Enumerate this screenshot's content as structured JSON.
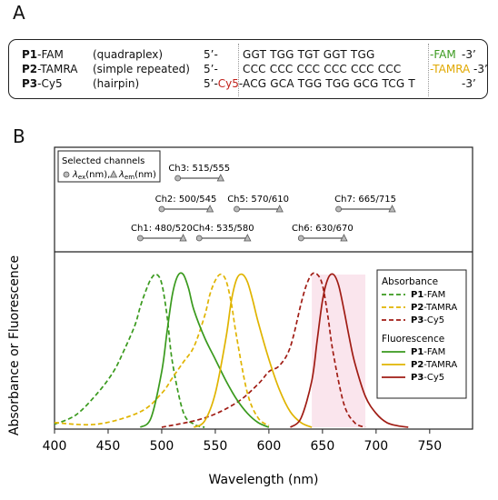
{
  "panel_a": {
    "letter": "A",
    "rows": [
      {
        "id": "P1",
        "suffix": "-FAM",
        "type": "(quadraplex)",
        "five": "5’-",
        "five_dye": "",
        "seq": "GGT TGG TGT GGT TGG",
        "three_dye": "-FAM",
        "three": "-3’",
        "dye_color": "#3a9a1e"
      },
      {
        "id": "P2",
        "suffix": "-TAMRA",
        "type": "(simple repeated)",
        "five": "5’-",
        "five_dye": "",
        "seq": "CCC CCC CCC CCC CCC CCC",
        "three_dye": "-TAMRA",
        "three": "-3’",
        "dye_color": "#e0a800"
      },
      {
        "id": "P3",
        "suffix": "-Cy5",
        "type": "(hairpin)",
        "five": "5’-",
        "five_dye": "Cy5",
        "seq": "ACG GCA TGG TGG GCG TCG T",
        "three_dye": "",
        "three": "-3’",
        "dye_color": "#c0201a"
      }
    ]
  },
  "panel_b": {
    "letter": "B",
    "legend_top": {
      "title": "Selected channels",
      "ex_label": "λ",
      "ex_sub": "ex",
      "ex_unit": "(nm),",
      "em_label": "λ",
      "em_sub": "em",
      "em_unit": "(nm)"
    },
    "legend_main": {
      "absorbance_title": "Absorbance",
      "fluorescence_title": "Fluorescence"
    }
  },
  "colors": {
    "fam": "#3a9a1e",
    "tamra": "#e0b400",
    "cy5": "#a01c14",
    "highlight": "#f5c6d8"
  },
  "chart_data": {
    "type": "line",
    "xlabel": "Wavelength (nm)",
    "ylabel": "Absorbance or Fluorescence",
    "xlim": [
      400,
      790
    ],
    "ylim": [
      0,
      1.05
    ],
    "xticks": [
      400,
      450,
      500,
      550,
      600,
      650,
      700,
      750
    ],
    "channels": [
      {
        "name": "Ch1: 480/520",
        "ex": 480,
        "em": 520,
        "row": 0
      },
      {
        "name": "Ch2: 500/545",
        "ex": 500,
        "em": 545,
        "row": 1
      },
      {
        "name": "Ch3: 515/555",
        "ex": 515,
        "em": 555,
        "row": 2
      },
      {
        "name": "Ch4: 535/580",
        "ex": 535,
        "em": 580,
        "row": 0
      },
      {
        "name": "Ch5: 570/610",
        "ex": 570,
        "em": 610,
        "row": 1
      },
      {
        "name": "Ch6: 630/670",
        "ex": 630,
        "em": 670,
        "row": 0
      },
      {
        "name": "Ch7: 665/715",
        "ex": 665,
        "em": 715,
        "row": 1
      }
    ],
    "series": [
      {
        "name": "P1-FAM",
        "group": "Absorbance",
        "dye": "fam",
        "style": "dashed",
        "x": [
          400,
          420,
          440,
          455,
          465,
          475,
          480,
          485,
          490,
          495,
          500,
          505,
          510,
          520,
          530,
          540
        ],
        "y": [
          0.02,
          0.08,
          0.22,
          0.36,
          0.5,
          0.66,
          0.78,
          0.88,
          0.96,
          0.99,
          0.93,
          0.72,
          0.42,
          0.1,
          0.02,
          0.0
        ]
      },
      {
        "name": "P2-TAMRA",
        "group": "Absorbance",
        "dye": "tamra",
        "style": "dashed",
        "x": [
          400,
          440,
          480,
          500,
          510,
          520,
          530,
          540,
          545,
          550,
          555,
          560,
          565,
          570,
          580,
          590,
          600
        ],
        "y": [
          0.03,
          0.02,
          0.1,
          0.22,
          0.32,
          0.42,
          0.52,
          0.72,
          0.86,
          0.95,
          0.99,
          0.95,
          0.8,
          0.58,
          0.22,
          0.06,
          0.01
        ]
      },
      {
        "name": "P3-Cy5",
        "group": "Absorbance",
        "dye": "cy5",
        "style": "dashed",
        "x": [
          500,
          540,
          570,
          590,
          600,
          610,
          620,
          630,
          635,
          640,
          645,
          650,
          655,
          660,
          670,
          680,
          690
        ],
        "y": [
          0.0,
          0.06,
          0.16,
          0.28,
          0.36,
          0.4,
          0.52,
          0.8,
          0.92,
          0.99,
          0.99,
          0.92,
          0.72,
          0.48,
          0.15,
          0.03,
          0.0
        ]
      },
      {
        "name": "P1-FAM",
        "group": "Fluorescence",
        "dye": "fam",
        "style": "solid",
        "x": [
          480,
          490,
          500,
          505,
          510,
          515,
          520,
          525,
          530,
          540,
          550,
          560,
          570,
          580,
          590,
          600
        ],
        "y": [
          0.0,
          0.06,
          0.36,
          0.62,
          0.86,
          0.98,
          0.99,
          0.9,
          0.76,
          0.58,
          0.44,
          0.3,
          0.18,
          0.09,
          0.03,
          0.0
        ]
      },
      {
        "name": "P2-TAMRA",
        "group": "Fluorescence",
        "dye": "tamra",
        "style": "solid",
        "x": [
          530,
          540,
          550,
          560,
          565,
          570,
          575,
          580,
          585,
          590,
          600,
          610,
          620,
          630,
          640
        ],
        "y": [
          0.0,
          0.04,
          0.22,
          0.58,
          0.82,
          0.96,
          0.99,
          0.94,
          0.82,
          0.68,
          0.44,
          0.24,
          0.1,
          0.03,
          0.0
        ]
      },
      {
        "name": "P3-Cy5",
        "group": "Fluorescence",
        "dye": "cy5",
        "style": "solid",
        "x": [
          620,
          630,
          640,
          645,
          650,
          655,
          660,
          665,
          670,
          675,
          680,
          690,
          700,
          710,
          720,
          730
        ],
        "y": [
          0.0,
          0.06,
          0.3,
          0.56,
          0.82,
          0.96,
          0.99,
          0.92,
          0.76,
          0.58,
          0.42,
          0.2,
          0.09,
          0.03,
          0.01,
          0.0
        ]
      }
    ],
    "legend_order": [
      {
        "group": "Absorbance",
        "items": [
          {
            "id": "P1",
            "suffix": "-FAM",
            "dye": "fam",
            "style": "dashed"
          },
          {
            "id": "P2",
            "suffix": "-TAMRA",
            "dye": "tamra",
            "style": "dashed"
          },
          {
            "id": "P3",
            "suffix": "-Cy5",
            "dye": "cy5",
            "style": "dashed"
          }
        ]
      },
      {
        "group": "Fluorescence",
        "items": [
          {
            "id": "P1",
            "suffix": "-FAM",
            "dye": "fam",
            "style": "solid"
          },
          {
            "id": "P2",
            "suffix": "-TAMRA",
            "dye": "tamra",
            "style": "solid"
          },
          {
            "id": "P3",
            "suffix": "-Cy5",
            "dye": "cy5",
            "style": "solid"
          }
        ]
      }
    ]
  }
}
